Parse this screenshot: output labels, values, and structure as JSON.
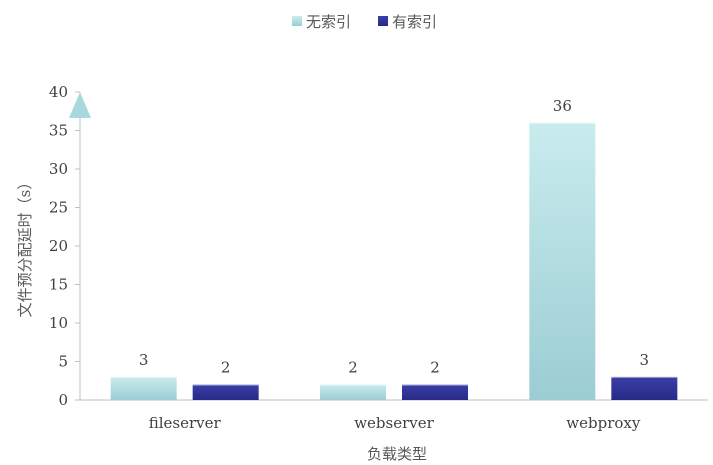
{
  "chart_data": {
    "type": "bar",
    "title": "",
    "xlabel": "负载类型",
    "ylabel": "文件预分配延时（s）",
    "categories": [
      "fileserver",
      "webserver",
      "webproxy"
    ],
    "series": [
      {
        "name": "无索引",
        "values": [
          3,
          2,
          36
        ],
        "color": "#A8D8DC"
      },
      {
        "name": "有索引",
        "values": [
          2,
          2,
          3
        ],
        "color": "#2E3192"
      }
    ],
    "ylim": [
      0,
      40
    ],
    "yticks": [
      0,
      5,
      10,
      15,
      20,
      25,
      30,
      35,
      40
    ],
    "grid": false,
    "legend": "top-center",
    "data_labels": true
  }
}
